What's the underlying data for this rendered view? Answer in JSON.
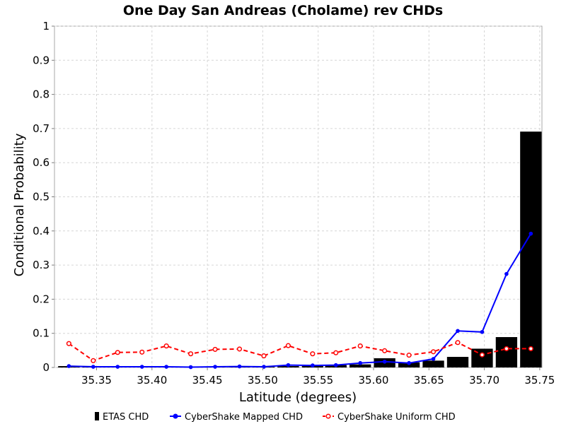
{
  "chart_data": {
    "type": "bar",
    "title": "One Day San Andreas (Cholame) rev CHDs",
    "xlabel": "Latitude (degrees)",
    "ylabel": "Conditional Probability",
    "xlim": [
      35.312,
      35.752
    ],
    "ylim": [
      0,
      1
    ],
    "grid": true,
    "legend_position": "bottom",
    "x_ticks": [
      "35.35",
      "35.40",
      "35.45",
      "35.50",
      "35.55",
      "35.60",
      "35.65",
      "35.70",
      "35.75"
    ],
    "y_ticks": [
      "0",
      "0.1",
      "0.2",
      "0.3",
      "0.4",
      "0.5",
      "0.6",
      "0.7",
      "0.8",
      "0.9",
      "1"
    ],
    "x": [
      35.325,
      35.347,
      35.369,
      35.391,
      35.413,
      35.435,
      35.457,
      35.479,
      35.501,
      35.523,
      35.545,
      35.566,
      35.588,
      35.61,
      35.632,
      35.654,
      35.676,
      35.698,
      35.72,
      35.742
    ],
    "series": [
      {
        "name": "ETAS CHD",
        "type": "bar",
        "color": "#000000",
        "values": [
          0.004,
          0.001,
          0.001,
          0.001,
          0.001,
          0.001,
          0.001,
          0.002,
          0.002,
          0.004,
          0.004,
          0.007,
          0.009,
          0.027,
          0.015,
          0.02,
          0.031,
          0.055,
          0.089,
          0.691
        ]
      },
      {
        "name": "CyberShake Mapped CHD",
        "type": "line",
        "color": "#0000ff",
        "values": [
          0.004,
          0.002,
          0.002,
          0.002,
          0.002,
          0.001,
          0.002,
          0.003,
          0.002,
          0.007,
          0.006,
          0.007,
          0.013,
          0.017,
          0.013,
          0.025,
          0.107,
          0.104,
          0.274,
          0.392
        ]
      },
      {
        "name": "CyberShake Uniform CHD",
        "type": "line",
        "color": "#ff0000",
        "values": [
          0.07,
          0.02,
          0.044,
          0.045,
          0.063,
          0.04,
          0.053,
          0.054,
          0.034,
          0.064,
          0.04,
          0.043,
          0.063,
          0.049,
          0.036,
          0.046,
          0.073,
          0.037,
          0.055,
          0.055
        ]
      }
    ]
  }
}
